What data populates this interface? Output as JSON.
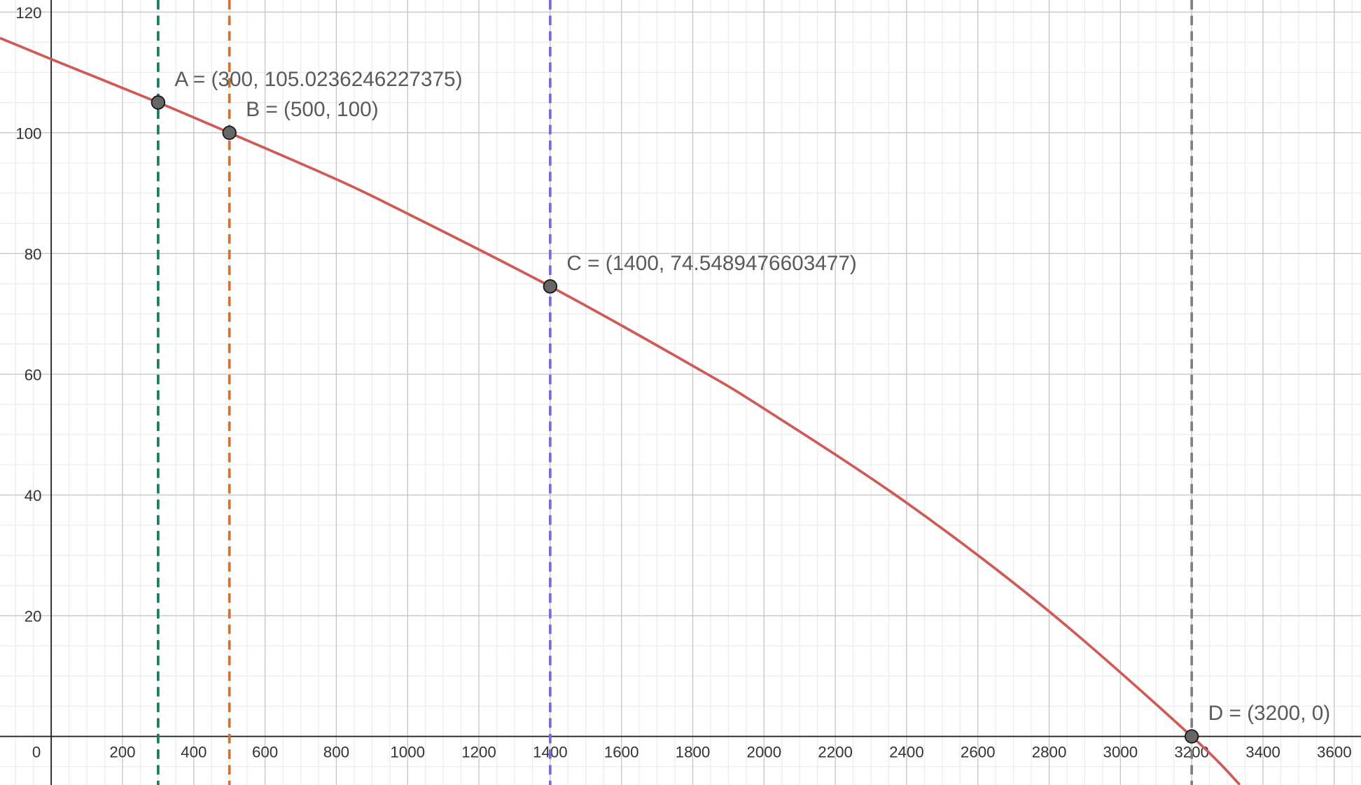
{
  "chart_data": {
    "type": "line",
    "xlim": [
      -143.7,
      3675
    ],
    "ylim": [
      -8.05,
      122
    ],
    "xticks": [
      0,
      200,
      400,
      600,
      800,
      1000,
      1200,
      1400,
      1600,
      1800,
      2000,
      2200,
      2400,
      2600,
      2800,
      3000,
      3200,
      3400,
      3600
    ],
    "yticks": [
      20,
      40,
      60,
      80,
      100,
      120
    ],
    "grid": true,
    "minor_divisions": 4,
    "series": [
      {
        "color": "#d05a55",
        "x": [
          -144,
          0,
          300,
          500,
          800,
          1000,
          1400,
          1800,
          2000,
          2400,
          2800,
          3200,
          3335
        ],
        "values": [
          115.7,
          112.2,
          105.0236246227375,
          100,
          92.3,
          86.6,
          74.5489476603477,
          61.4,
          54.3,
          38.7,
          20.7,
          0,
          -8
        ]
      }
    ],
    "points": [
      {
        "label": "A = (300, 105.0236246227375)",
        "x": 300,
        "y": 105.0236246227375,
        "color": "#1f7a63"
      },
      {
        "label": "B = (500, 100)",
        "x": 500,
        "y": 100,
        "color": "#c8743a"
      },
      {
        "label": "C = (1400, 74.5489476603477)",
        "x": 1400,
        "y": 74.5489476603477,
        "color": "#7b6ad6"
      },
      {
        "label": "D = (3200, 0)",
        "x": 3200,
        "y": 0,
        "color": "#808080"
      }
    ]
  }
}
